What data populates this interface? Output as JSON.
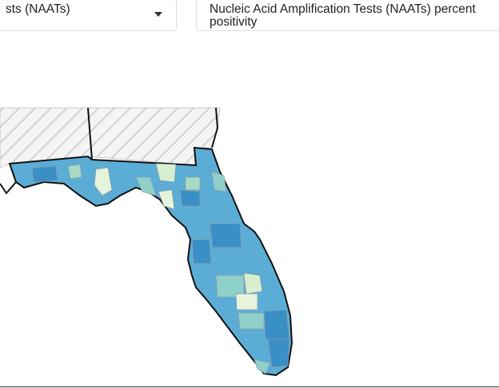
{
  "dropdowns": [
    {
      "label": "sts (NAATs)"
    },
    {
      "label": "Nucleic Acid Amplification Tests (NAATs) percent positivity"
    }
  ]
}
